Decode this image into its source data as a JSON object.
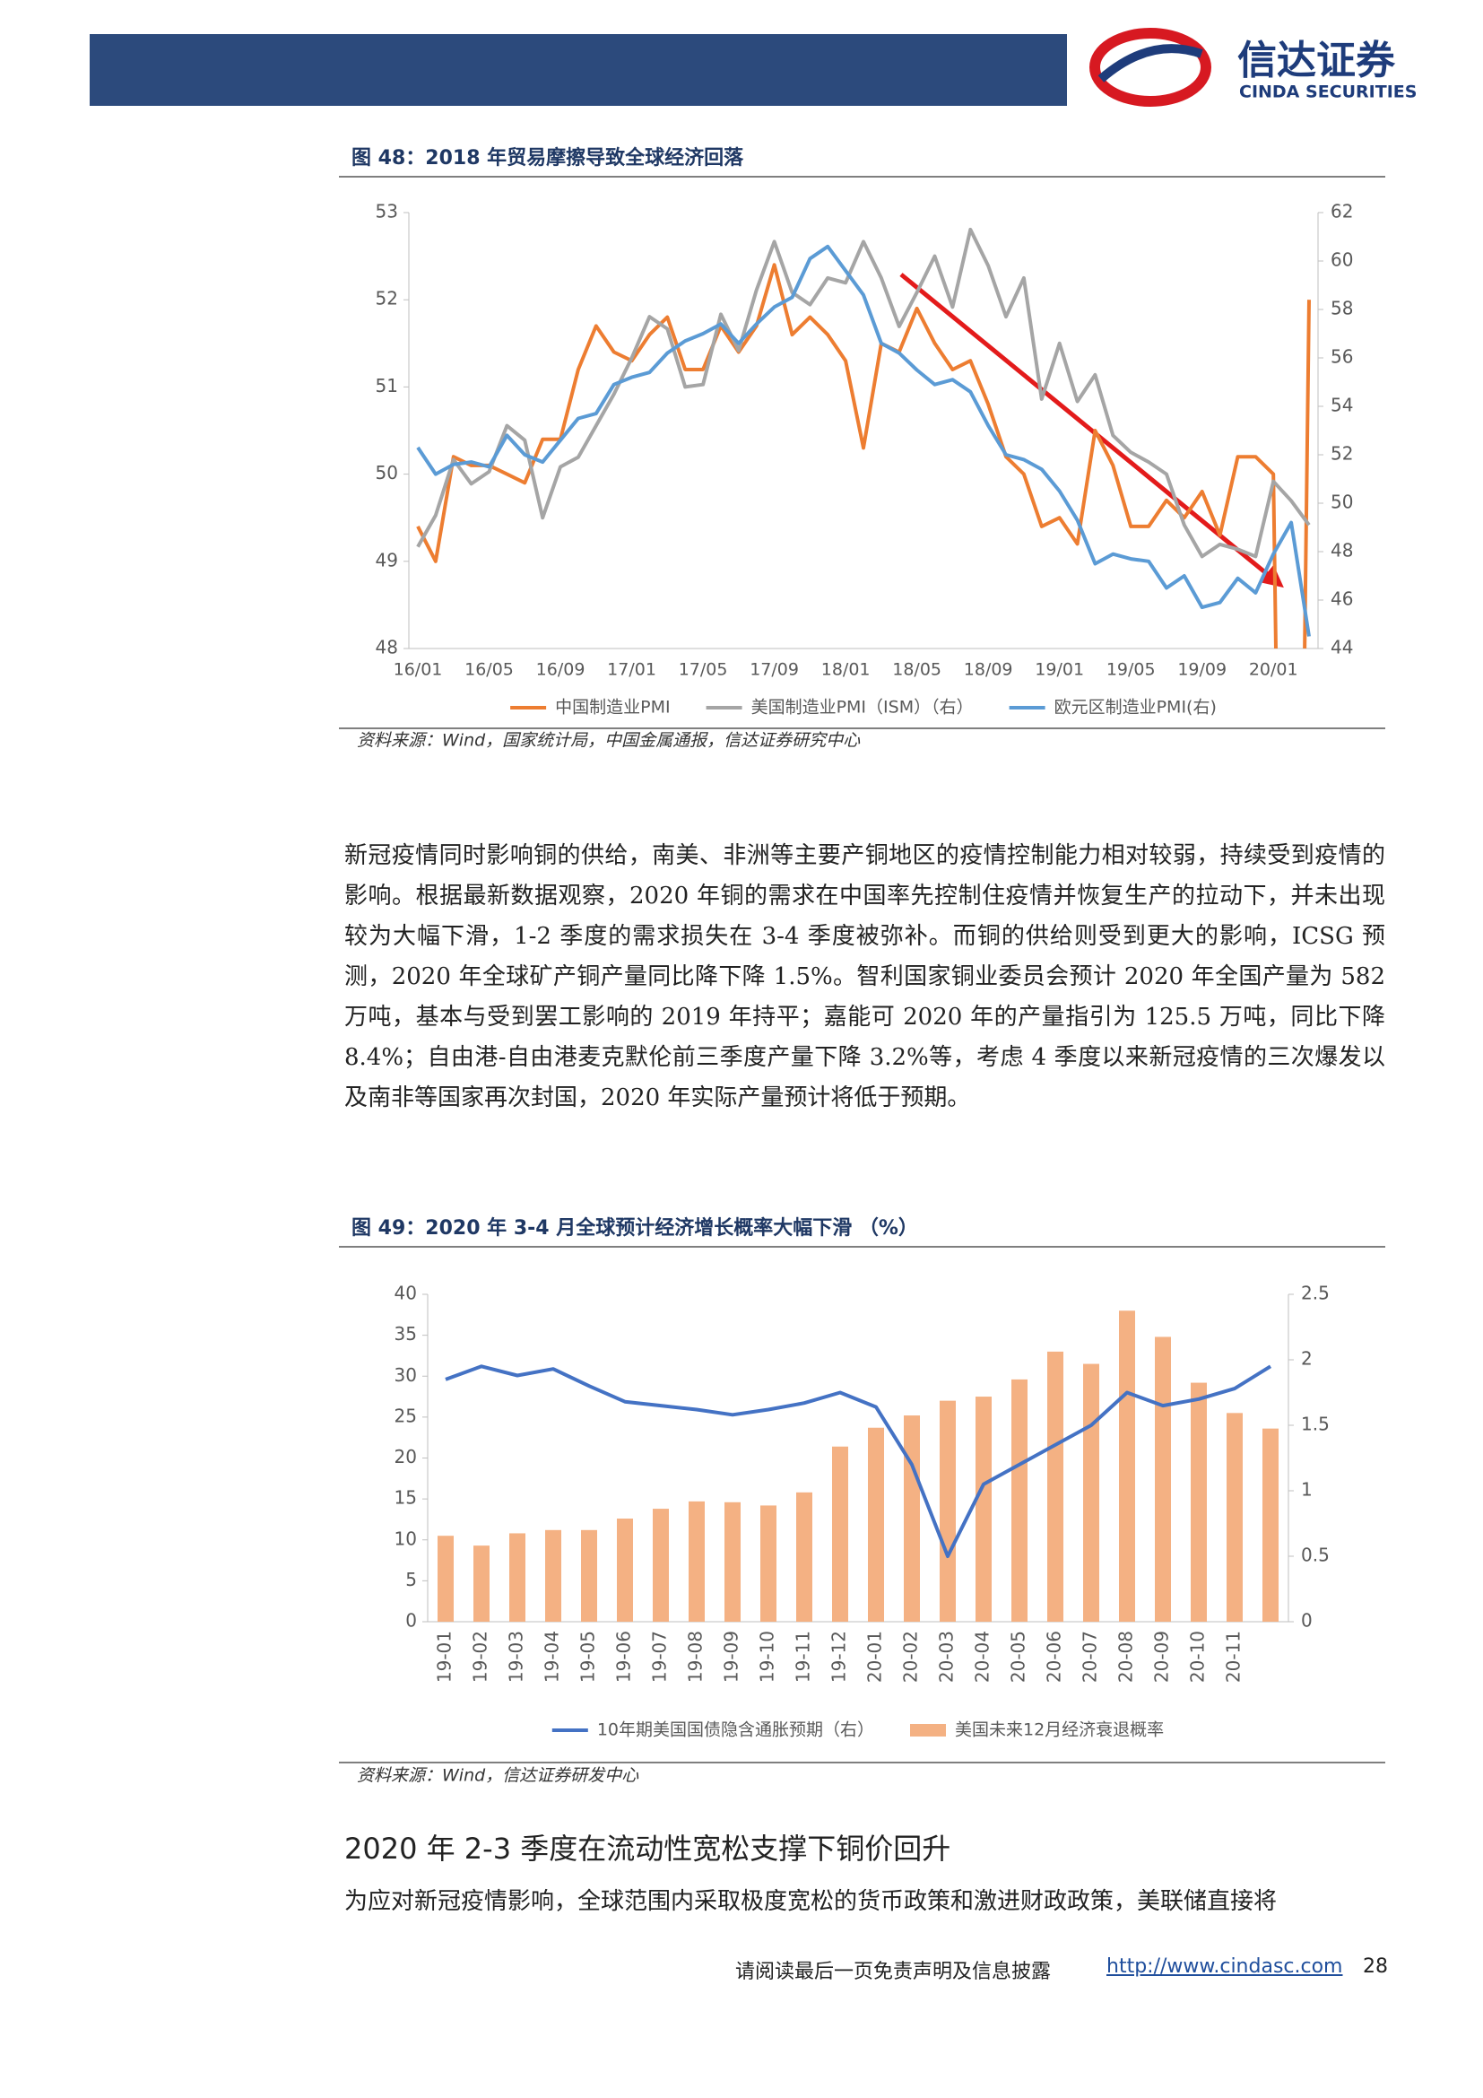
{
  "header": {
    "logo_cn": "信达证券",
    "logo_en": "CINDA SECURITIES"
  },
  "figures": [
    {
      "title": "图 48：2018 年贸易摩擦导致全球经济回落",
      "source": "资料来源：Wind，国家统计局，中国金属通报，信达证券研究中心",
      "chart_data": {
        "type": "line",
        "categories": [
          "16/01",
          null,
          null,
          null,
          "16/05",
          null,
          null,
          null,
          "16/09",
          null,
          null,
          null,
          "17/01",
          null,
          null,
          null,
          "17/05",
          null,
          null,
          null,
          "17/09",
          null,
          null,
          null,
          "18/01",
          null,
          null,
          null,
          "18/05",
          null,
          null,
          null,
          "18/09",
          null,
          null,
          null,
          "19/01",
          null,
          null,
          null,
          "19/05",
          null,
          null,
          null,
          "19/09",
          null,
          null,
          null,
          "20/01",
          null,
          null
        ],
        "ylim": [
          48,
          53
        ],
        "yticks": [
          48,
          49,
          50,
          51,
          52,
          53
        ],
        "y2lim": [
          44,
          62
        ],
        "y2ticks": [
          44,
          46,
          48,
          50,
          52,
          54,
          56,
          58,
          60,
          62
        ],
        "series": [
          {
            "name": "中国制造业PMI",
            "color": "#ed7d31",
            "values": [
              49.4,
              49.0,
              50.2,
              50.1,
              50.1,
              50.0,
              49.9,
              50.4,
              50.4,
              51.2,
              51.7,
              51.4,
              51.3,
              51.6,
              51.8,
              51.2,
              51.2,
              51.7,
              51.4,
              51.7,
              52.4,
              51.6,
              51.8,
              51.6,
              51.3,
              50.3,
              51.5,
              51.4,
              51.9,
              51.5,
              51.2,
              51.3,
              50.8,
              50.2,
              50.0,
              49.4,
              49.5,
              49.2,
              50.5,
              50.1,
              49.4,
              49.4,
              49.7,
              49.5,
              49.8,
              49.3,
              50.2,
              50.2,
              50.0,
              35.7,
              52.0
            ]
          },
          {
            "name": "美国制造业PMI（ISM）（右）",
            "color": "#a5a5a5",
            "axis": "y2",
            "values": [
              48.2,
              49.5,
              51.8,
              50.8,
              51.3,
              53.2,
              52.6,
              49.4,
              51.5,
              51.9,
              53.2,
              54.5,
              56.0,
              57.7,
              57.2,
              54.8,
              54.9,
              57.8,
              56.3,
              58.8,
              60.8,
              58.7,
              58.2,
              59.3,
              59.1,
              60.8,
              59.3,
              57.3,
              58.7,
              60.2,
              58.1,
              61.3,
              59.8,
              57.7,
              59.3,
              54.3,
              56.6,
              54.2,
              55.3,
              52.8,
              52.1,
              51.7,
              51.2,
              49.1,
              47.8,
              48.3,
              48.1,
              47.8,
              50.9,
              50.1,
              49.1
            ]
          },
          {
            "name": "欧元区制造业PMI(右)",
            "color": "#5b9bd5",
            "axis": "y2",
            "values": [
              52.3,
              51.2,
              51.6,
              51.7,
              51.5,
              52.8,
              52.0,
              51.7,
              52.6,
              53.5,
              53.7,
              54.9,
              55.2,
              55.4,
              56.2,
              56.7,
              57.0,
              57.4,
              56.6,
              57.4,
              58.1,
              58.5,
              60.1,
              60.6,
              59.6,
              58.6,
              56.6,
              56.2,
              55.5,
              54.9,
              55.1,
              54.6,
              53.2,
              52.0,
              51.8,
              51.4,
              50.5,
              49.3,
              47.5,
              47.9,
              47.7,
              47.6,
              46.5,
              47.0,
              45.7,
              45.9,
              46.9,
              46.3,
              47.9,
              49.2,
              44.5
            ]
          }
        ]
      }
    },
    {
      "title": "图 49：2020 年 3-4 月全球预计经济增长概率大幅下滑 （%）",
      "source": "资料来源：Wind，信达证券研发中心",
      "chart_data": {
        "type": "bar",
        "categories": [
          "19-01",
          "19-02",
          "19-03",
          "19-04",
          "19-05",
          "19-06",
          "19-07",
          "19-08",
          "19-09",
          "19-10",
          "19-11",
          "19-12",
          "20-01",
          "20-02",
          "20-03",
          "20-04",
          "20-05",
          "20-06",
          "20-07",
          "20-08",
          "20-09",
          "20-10",
          "20-11",
          null
        ],
        "ylim": [
          0,
          40
        ],
        "yticks": [
          0,
          5,
          10,
          15,
          20,
          25,
          30,
          35,
          40
        ],
        "y2lim": [
          0,
          2.5
        ],
        "y2ticks": [
          0,
          0.5,
          1,
          1.5,
          2,
          2.5
        ],
        "series": [
          {
            "name": "10年期美国国债隐含通胀预期（右）",
            "color": "#4472c4",
            "axis": "y2",
            "type": "line",
            "values": [
              1.85,
              1.95,
              1.88,
              1.93,
              1.8,
              1.68,
              1.65,
              1.62,
              1.58,
              1.62,
              1.67,
              1.75,
              1.64,
              1.2,
              0.5,
              1.05,
              1.2,
              1.35,
              1.5,
              1.75,
              1.65,
              1.7,
              1.78,
              1.95
            ]
          },
          {
            "name": "美国未来12月经济衰退概率",
            "color": "#f4b183",
            "type": "bar",
            "values": [
              10.5,
              9.3,
              10.8,
              11.2,
              11.2,
              12.6,
              13.8,
              14.7,
              14.6,
              14.2,
              15.8,
              21.4,
              23.7,
              25.2,
              27.0,
              27.5,
              29.6,
              33.0,
              31.5,
              38.0,
              34.8,
              29.2,
              25.5,
              23.6
            ]
          }
        ]
      }
    }
  ],
  "paragraphs": [
    "新冠疫情同时影响铜的供给，南美、非洲等主要产铜地区的疫情控制能力相对较弱，持续受到疫情的影响。根据最新数据观察，2020 年铜的需求在中国率先控制住疫情并恢复生产的拉动下，并未出现较为大幅下滑，1-2 季度的需求损失在 3-4 季度被弥补。而铜的供给则受到更大的影响，ICSG 预测，2020 年全球矿产铜产量同比降下降 1.5%。智利国家铜业委员会预计 2020 年全国产量为 582 万吨，基本与受到罢工影响的 2019 年持平；嘉能可 2020 年的产量指引为 125.5 万吨，同比下降 8.4%；自由港-自由港麦克默伦前三季度产量下降 3.2%等，考虑 4 季度以来新冠疫情的三次爆发以及南非等国家再次封国，2020 年实际产量预计将低于预期。",
    "为应对新冠疫情影响，全球范围内采取极度宽松的货币政策和激进财政政策，美联储直接将"
  ],
  "heading": "2020 年 2-3 季度在流动性宽松支撑下铜价回升",
  "footer": {
    "disclaimer": "请阅读最后一页免责声明及信息披露",
    "url": "http://www.cindasc.com",
    "page": "28"
  }
}
